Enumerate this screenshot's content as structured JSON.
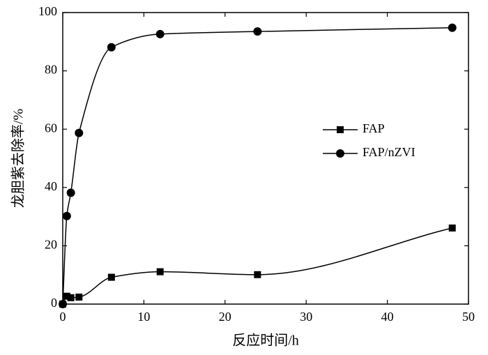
{
  "chart_data": {
    "type": "line",
    "xlabel": "反应时间/h",
    "ylabel": "龙胆紫去除率/%",
    "x": [
      0,
      0.5,
      1,
      2,
      6,
      12,
      24,
      48
    ],
    "series": [
      {
        "name": "FAP",
        "color": "#000000",
        "marker": "square",
        "values": [
          0,
          2.7,
          2.2,
          2.4,
          9.2,
          11.1,
          10.1,
          26.1
        ]
      },
      {
        "name": "FAP/nZVI",
        "color": "#000000",
        "marker": "circle",
        "values": [
          0,
          30.2,
          38.2,
          58.7,
          88.1,
          92.6,
          93.5,
          94.8
        ]
      }
    ],
    "xlim": [
      0,
      50
    ],
    "xticks": [
      0,
      10,
      20,
      30,
      40,
      50
    ],
    "ylim": [
      0,
      100
    ],
    "yticks": [
      0,
      20,
      40,
      60,
      80,
      100
    ],
    "legend": "right"
  }
}
